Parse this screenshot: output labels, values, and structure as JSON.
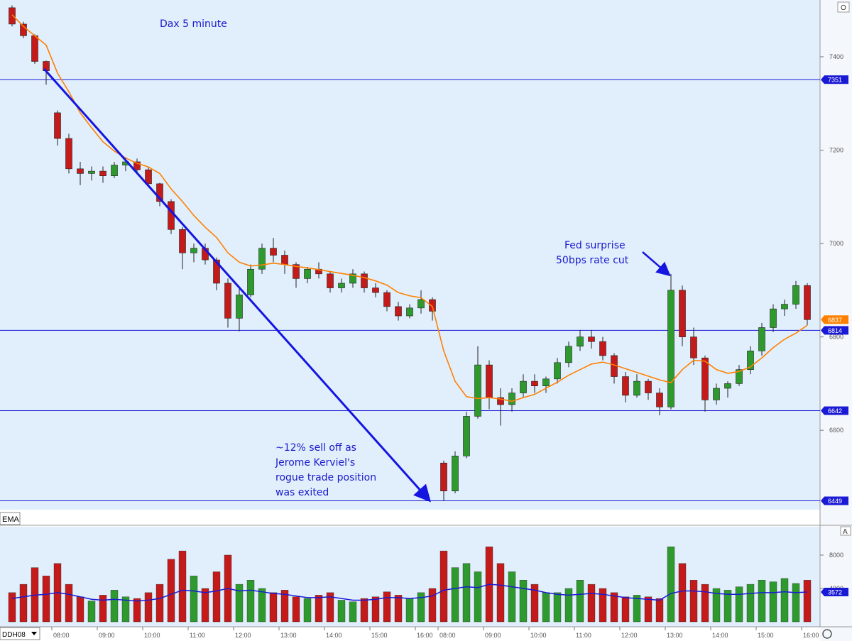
{
  "chart_data": [
    {
      "type": "candlestick",
      "title": "Dax 5 minute",
      "categories": [
        null,
        null,
        null,
        null,
        "08:00",
        null,
        null,
        null,
        "09:00",
        null,
        null,
        null,
        "10:00",
        null,
        null,
        null,
        "11:00",
        null,
        null,
        null,
        "12:00",
        null,
        null,
        null,
        "13:00",
        null,
        null,
        null,
        "14:00",
        null,
        null,
        null,
        "15:00",
        null,
        null,
        null,
        "16:00",
        null,
        "08:00",
        null,
        null,
        null,
        "09:00",
        null,
        null,
        null,
        "10:00",
        null,
        null,
        null,
        "11:00",
        null,
        null,
        null,
        "12:00",
        null,
        null,
        null,
        "13:00",
        null,
        null,
        null,
        "14:00",
        null,
        null,
        null,
        "15:00",
        null,
        null,
        null,
        "16:00"
      ],
      "open": [
        7505,
        7470,
        7445,
        7390,
        7280,
        7225,
        7160,
        7150,
        7155,
        7145,
        7168,
        7175,
        7158,
        7128,
        7090,
        7030,
        6980,
        6990,
        6965,
        6915,
        6840,
        6890,
        6945,
        6990,
        6975,
        6955,
        6925,
        6945,
        6935,
        6905,
        6915,
        6935,
        6905,
        6895,
        6865,
        6845,
        6862,
        6880,
        6530,
        6470,
        6545,
        6630,
        6740,
        6670,
        6655,
        6680,
        6705,
        6695,
        6710,
        6745,
        6780,
        6800,
        6790,
        6760,
        6715,
        6675,
        6705,
        6680,
        6650,
        6900,
        6800,
        6755,
        6665,
        6690,
        6700,
        6730,
        6770,
        6820,
        6860,
        6870,
        6910
      ],
      "high": [
        7510,
        7475,
        7448,
        7392,
        7285,
        7235,
        7175,
        7165,
        7165,
        7175,
        7185,
        7182,
        7165,
        7130,
        7095,
        7035,
        7000,
        7000,
        6970,
        6925,
        6905,
        6955,
        7000,
        7012,
        6985,
        6960,
        6950,
        6960,
        6940,
        6925,
        6945,
        6940,
        6915,
        6900,
        6875,
        6870,
        6900,
        6885,
        6535,
        6555,
        6640,
        6780,
        6750,
        6690,
        6690,
        6720,
        6720,
        6715,
        6755,
        6790,
        6815,
        6815,
        6800,
        6765,
        6725,
        6720,
        6710,
        6690,
        6935,
        6910,
        6820,
        6760,
        6700,
        6705,
        6740,
        6780,
        6830,
        6870,
        6880,
        6920,
        6915
      ],
      "low": [
        7465,
        7440,
        7385,
        7340,
        7210,
        7150,
        7125,
        7135,
        7130,
        7140,
        7155,
        7150,
        7120,
        7080,
        7020,
        6945,
        6960,
        6955,
        6900,
        6820,
        6812,
        6885,
        6935,
        6960,
        6935,
        6905,
        6915,
        6925,
        6895,
        6895,
        6905,
        6895,
        6885,
        6855,
        6835,
        6840,
        6850,
        6835,
        6449,
        6465,
        6540,
        6625,
        6645,
        6610,
        6640,
        6670,
        6680,
        6680,
        6700,
        6735,
        6770,
        6775,
        6750,
        6700,
        6660,
        6670,
        6665,
        6632,
        6645,
        6780,
        6740,
        6640,
        6655,
        6670,
        6695,
        6720,
        6760,
        6810,
        6845,
        6860,
        6825
      ],
      "close": [
        7470,
        7445,
        7390,
        7370,
        7225,
        7160,
        7150,
        7155,
        7145,
        7168,
        7175,
        7158,
        7128,
        7090,
        7030,
        6980,
        6990,
        6965,
        6915,
        6840,
        6890,
        6945,
        6990,
        6975,
        6955,
        6925,
        6945,
        6935,
        6905,
        6915,
        6935,
        6905,
        6895,
        6865,
        6845,
        6862,
        6880,
        6855,
        6470,
        6545,
        6630,
        6740,
        6670,
        6655,
        6680,
        6705,
        6695,
        6710,
        6745,
        6780,
        6800,
        6790,
        6760,
        6715,
        6675,
        6705,
        6680,
        6650,
        6900,
        6800,
        6755,
        6665,
        6690,
        6700,
        6730,
        6770,
        6820,
        6860,
        6870,
        6910,
        6837
      ],
      "up_color": "#2e9a2e",
      "down_color": "#c41a1a",
      "ema": {
        "name": "EMA",
        "color": "#ff8000",
        "values": [
          7490,
          7465,
          7445,
          7425,
          7365,
          7325,
          7280,
          7248,
          7218,
          7198,
          7183,
          7172,
          7164,
          7150,
          7117,
          7090,
          7060,
          7035,
          7013,
          6980,
          6960,
          6952,
          6954,
          6958,
          6955,
          6951,
          6948,
          6944,
          6940,
          6936,
          6932,
          6927,
          6920,
          6911,
          6895,
          6888,
          6884,
          6865,
          6770,
          6705,
          6672,
          6668,
          6670,
          6667,
          6662,
          6670,
          6677,
          6690,
          6703,
          6718,
          6730,
          6742,
          6746,
          6740,
          6732,
          6724,
          6716,
          6708,
          6702,
          6730,
          6750,
          6748,
          6730,
          6722,
          6726,
          6736,
          6755,
          6777,
          6795,
          6808,
          6825
        ]
      },
      "levels": [
        7351,
        6814,
        6642,
        6449
      ],
      "level_color": "#1a1ad6",
      "ylim": [
        6430,
        7517
      ],
      "yticks": [
        6600,
        6800,
        7000,
        7200,
        7400
      ],
      "annotations": [
        [
          "Fed surprise",
          "50bps rate cut"
        ],
        [
          "~12% sell off as",
          "Jerome Kerviel's",
          "rogue trade position",
          "was exited"
        ]
      ]
    },
    {
      "type": "bar",
      "values": [
        3500,
        4500,
        6500,
        5500,
        7000,
        4500,
        3000,
        2500,
        3200,
        3800,
        3000,
        2800,
        3500,
        4500,
        7500,
        8500,
        5500,
        4000,
        6000,
        8000,
        4500,
        5000,
        4000,
        3500,
        3800,
        3000,
        2800,
        3200,
        3500,
        2600,
        2400,
        2800,
        3000,
        3600,
        3200,
        2800,
        3500,
        4000,
        8500,
        6500,
        7000,
        6000,
        9000,
        7000,
        6000,
        5000,
        4500,
        3500,
        3500,
        4000,
        5000,
        4500,
        4000,
        3500,
        3000,
        3200,
        3000,
        2800,
        9000,
        7000,
        5000,
        4500,
        4000,
        3800,
        4200,
        4500,
        5000,
        4800,
        5200,
        4600,
        5000
      ],
      "average": {
        "color": "#1a1ad6",
        "values": [
          2800,
          3000,
          3200,
          3300,
          3500,
          3300,
          3000,
          2700,
          2600,
          2700,
          2600,
          2500,
          2600,
          2800,
          3300,
          3800,
          3700,
          3500,
          3700,
          4000,
          3700,
          3800,
          3600,
          3400,
          3300,
          3100,
          2900,
          2900,
          3000,
          2800,
          2600,
          2600,
          2700,
          2900,
          2900,
          2800,
          2900,
          3100,
          3800,
          4000,
          4200,
          4100,
          4500,
          4400,
          4200,
          4000,
          3800,
          3500,
          3300,
          3200,
          3300,
          3400,
          3300,
          3100,
          2900,
          2800,
          2700,
          2600,
          3400,
          3700,
          3700,
          3600,
          3400,
          3300,
          3300,
          3400,
          3500,
          3500,
          3600,
          3500,
          3572
        ]
      },
      "ylim": [
        0,
        11400
      ],
      "yticks": [
        4000,
        8000
      ]
    }
  ],
  "ui": {
    "symbol": "DDH08",
    "price_button": "O",
    "volume_button": "A"
  }
}
